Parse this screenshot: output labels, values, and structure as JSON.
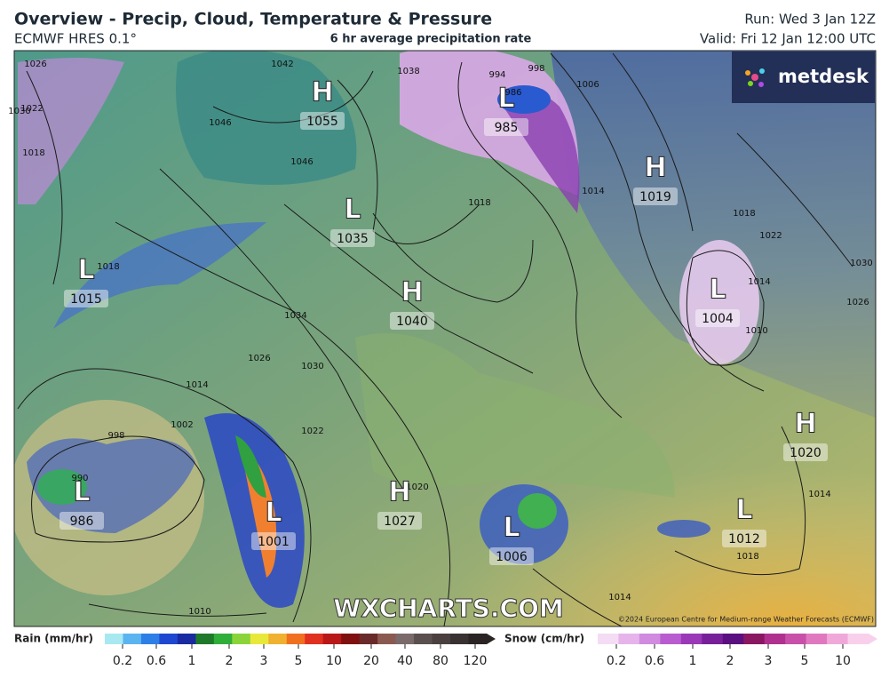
{
  "header": {
    "title": "Overview - Precip, Cloud, Temperature & Pressure",
    "model": "ECMWF HRES 0.1°",
    "subtitle": "6 hr average precipitation rate",
    "run": "Run: Wed 3 Jan 12Z",
    "valid": "Valid: Fri 12 Jan 12:00 UTC"
  },
  "brand": "metdesk",
  "watermark": "WXCHARTS.COM",
  "copyright": "©2024 European Centre for Medium-range Weather Forecasts (ECMWF)",
  "pressure_centers": [
    {
      "kind": "H",
      "value": "1055"
    },
    {
      "kind": "L",
      "value": "985"
    },
    {
      "kind": "H",
      "value": "1019"
    },
    {
      "kind": "L",
      "value": "1035"
    },
    {
      "kind": "L",
      "value": "1015"
    },
    {
      "kind": "H",
      "value": "1040"
    },
    {
      "kind": "L",
      "value": "1004"
    },
    {
      "kind": "H",
      "value": "1020"
    },
    {
      "kind": "L",
      "value": "986"
    },
    {
      "kind": "L",
      "value": "1001"
    },
    {
      "kind": "H",
      "value": "1027"
    },
    {
      "kind": "L",
      "value": "1006"
    },
    {
      "kind": "L",
      "value": "1012"
    }
  ],
  "isobar_labels": [
    "1026",
    "1030",
    "1022",
    "1018",
    "1042",
    "1046",
    "1046",
    "1038",
    "994",
    "998",
    "986",
    "1006",
    "1018",
    "1014",
    "1018",
    "1022",
    "1030",
    "1026",
    "1014",
    "1010",
    "1018",
    "1034",
    "1030",
    "1026",
    "1014",
    "1022",
    "1002",
    "998",
    "990",
    "1010",
    "1020",
    "1014",
    "1018",
    "1014"
  ],
  "legend": {
    "rain": {
      "title": "Rain (mm/hr)",
      "ticks": [
        "0.2",
        "0.6",
        "1",
        "2",
        "3",
        "5",
        "10",
        "20",
        "40",
        "80",
        "120"
      ]
    },
    "snow": {
      "title": "Snow (cm/hr)",
      "ticks": [
        "0.2",
        "0.6",
        "1",
        "2",
        "3",
        "5",
        "10"
      ]
    }
  }
}
